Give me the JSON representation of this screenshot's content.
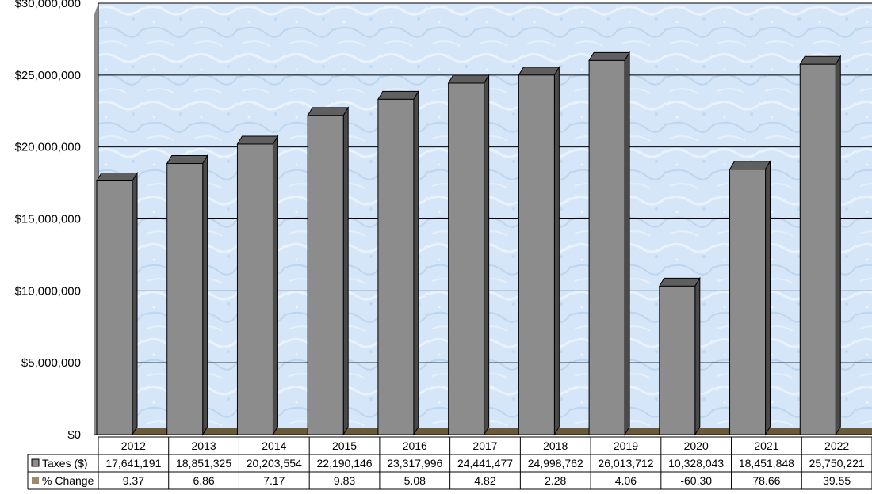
{
  "chart_data": {
    "type": "bar",
    "title": "",
    "xlabel": "",
    "ylabel": "",
    "ylim": [
      0,
      30000000
    ],
    "yticks": [
      "$0",
      "$5,000,000",
      "$10,000,000",
      "$15,000,000",
      "$20,000,000",
      "$25,000,000",
      "$30,000,000"
    ],
    "grid": true,
    "categories": [
      "2012",
      "2013",
      "2014",
      "2015",
      "2016",
      "2017",
      "2018",
      "2019",
      "2020",
      "2021",
      "2022"
    ],
    "series": [
      {
        "name": "Taxes ($)",
        "color": "#8c8c8c",
        "values": [
          17641191,
          18851325,
          20203554,
          22190146,
          23317996,
          24441477,
          24998762,
          26013712,
          10328043,
          18451848,
          25750221
        ],
        "labels": [
          "17,641,191",
          "18,851,325",
          "20,203,554",
          "22,190,146",
          "23,317,996",
          "24,441,477",
          "24,998,762",
          "26,013,712",
          "10,328,043",
          "18,451,848",
          "25,750,221"
        ]
      },
      {
        "name": "% Change",
        "color": "#9c8a6a",
        "values": [
          9.37,
          6.86,
          7.17,
          9.83,
          5.08,
          4.82,
          2.28,
          4.06,
          -60.3,
          78.66,
          39.55
        ],
        "labels": [
          "9.37",
          "6.86",
          "7.17",
          "9.83",
          "5.08",
          "4.82",
          "2.28",
          "4.06",
          "-60.30",
          "78.66",
          "39.55"
        ]
      }
    ],
    "legend": "data-table"
  }
}
